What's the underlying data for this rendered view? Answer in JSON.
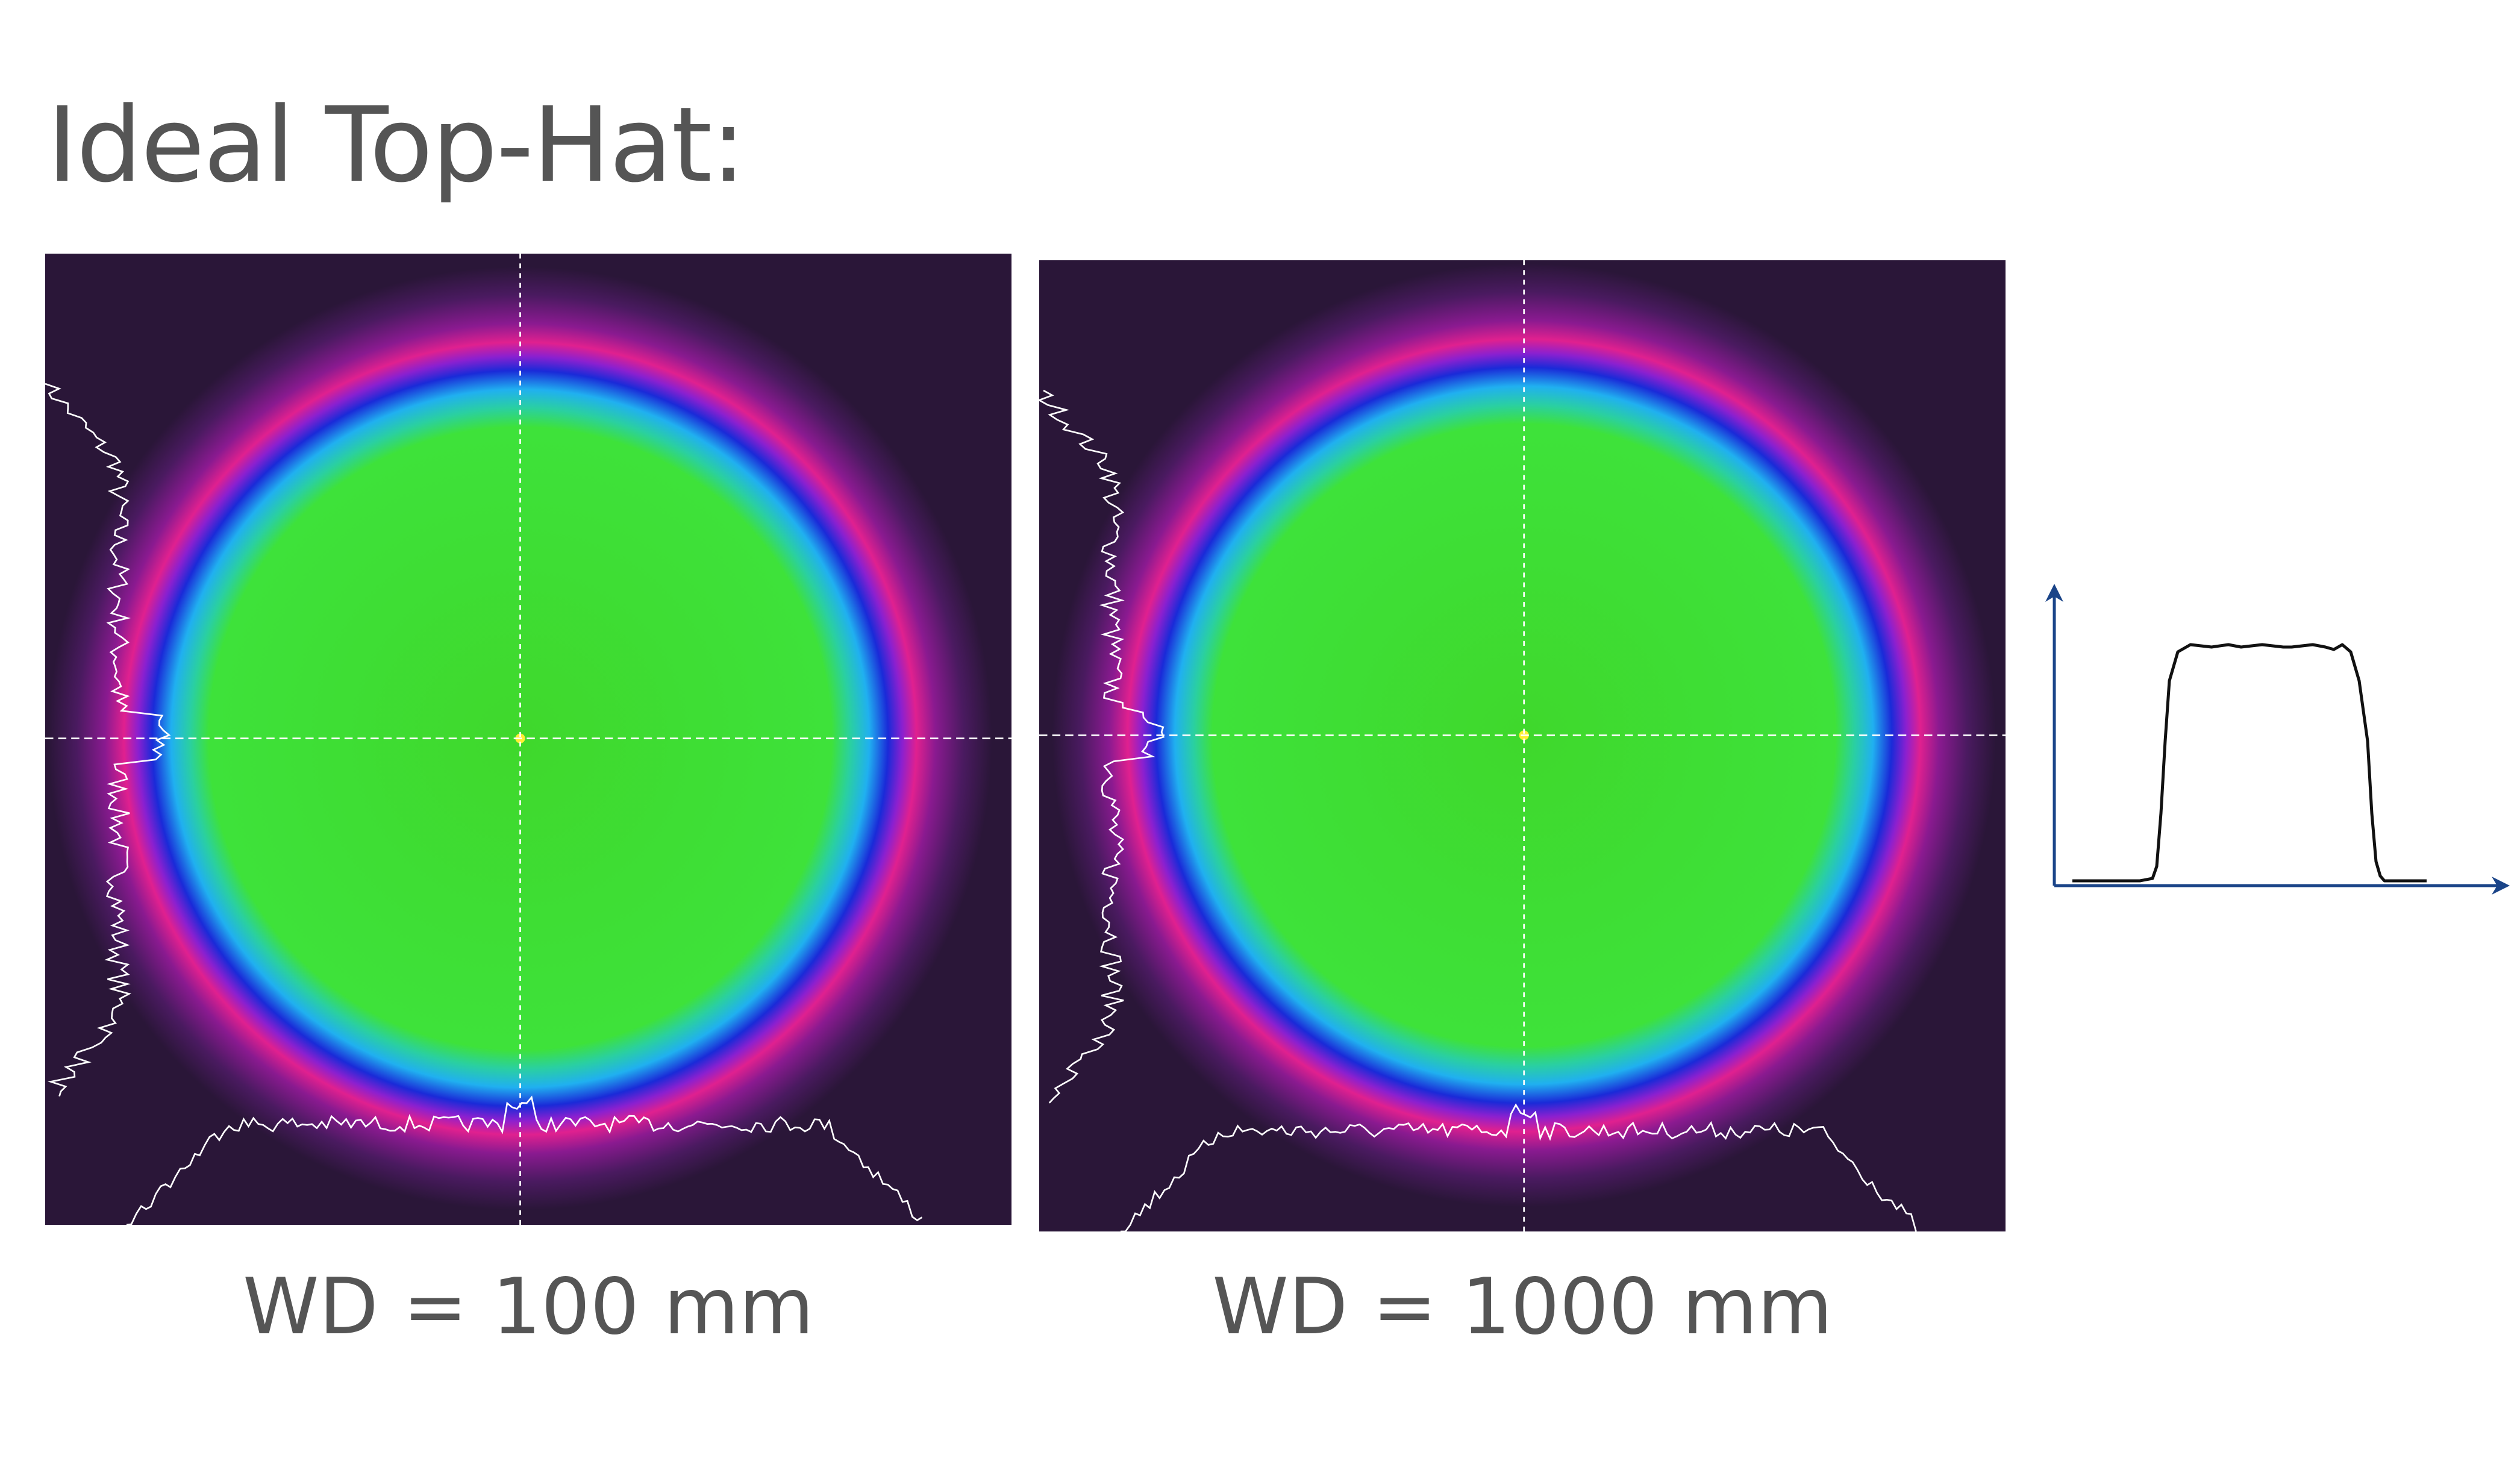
{
  "title": "Ideal Top-Hat:",
  "panels": [
    {
      "label": "WD = 100 mm"
    },
    {
      "label": "WD = 1000 mm"
    }
  ],
  "colors": {
    "text": "#555555",
    "axis": "#1a4488",
    "profile": "#111111",
    "green": "#3ee23a",
    "magenta": "#e0208f",
    "background": "#2a1638"
  },
  "chart_data": {
    "type": "line",
    "title": "",
    "xlabel": "",
    "ylabel": "",
    "xlim": [
      0,
      100
    ],
    "ylim": [
      0,
      1.2
    ],
    "series": [
      {
        "name": "top-hat profile",
        "x": [
          0,
          12,
          16,
          19,
          20,
          21,
          22,
          23,
          25,
          28,
          33,
          37,
          40,
          45,
          50,
          52,
          57,
          60,
          62,
          64,
          66,
          68,
          70,
          71,
          72,
          73,
          74,
          76,
          80,
          84
        ],
        "y": [
          0.02,
          0.02,
          0.02,
          0.03,
          0.08,
          0.3,
          0.6,
          0.85,
          0.97,
          1.0,
          0.99,
          1.0,
          0.99,
          1.0,
          0.99,
          0.99,
          1.0,
          0.99,
          0.98,
          1.0,
          0.97,
          0.85,
          0.6,
          0.3,
          0.1,
          0.04,
          0.02,
          0.02,
          0.02,
          0.02
        ]
      }
    ]
  }
}
